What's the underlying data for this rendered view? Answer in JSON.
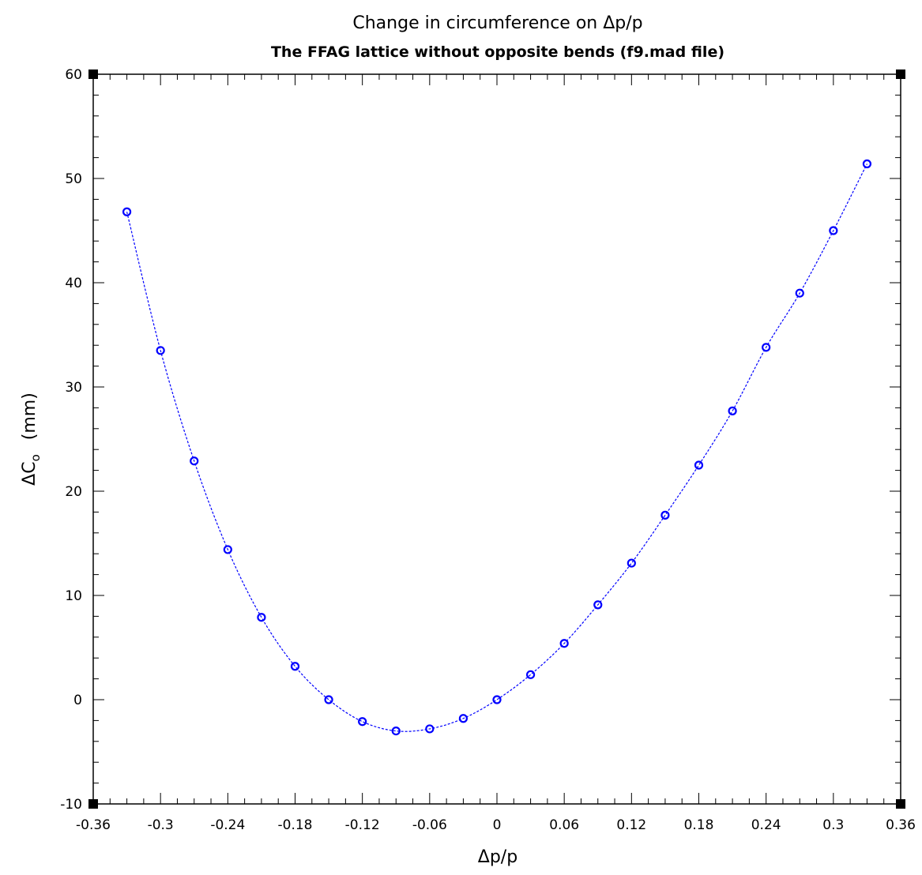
{
  "chart_data": {
    "type": "line",
    "title": "Change in circumference on Δp/p",
    "subtitle": "The FFAG lattice without opposite bends (f9.mad file)",
    "xlabel": "Δp/p",
    "ylabel": "ΔC",
    "ylabel_subscript": "o",
    "ylabel_unit": "(mm)",
    "xlim": [
      -0.36,
      0.36
    ],
    "ylim": [
      -10,
      60
    ],
    "xticks": [
      "-0.36",
      "-0.3",
      "-0.24",
      "-0.18",
      "-0.12",
      "-0.06",
      "0",
      "0.06",
      "0.12",
      "0.18",
      "0.24",
      "0.3",
      "0.36"
    ],
    "yticks": [
      "-10",
      "0",
      "10",
      "20",
      "30",
      "40",
      "50",
      "60"
    ],
    "grid": false,
    "series": [
      {
        "color": "#0000ff",
        "marker": "circle",
        "line_style": "dashed",
        "x": [
          -0.33,
          -0.3,
          -0.27,
          -0.24,
          -0.21,
          -0.18,
          -0.15,
          -0.12,
          -0.09,
          -0.06,
          -0.03,
          0.0,
          0.03,
          0.06,
          0.09,
          0.12,
          0.15,
          0.18,
          0.21,
          0.24,
          0.27,
          0.3,
          0.33
        ],
        "y": [
          46.8,
          33.5,
          22.9,
          14.4,
          7.9,
          3.2,
          0.0,
          -2.1,
          -3.0,
          -2.8,
          -1.8,
          0.0,
          2.4,
          5.4,
          9.1,
          13.1,
          17.7,
          22.5,
          27.7,
          33.8,
          39.0,
          45.0,
          51.4
        ]
      }
    ]
  }
}
